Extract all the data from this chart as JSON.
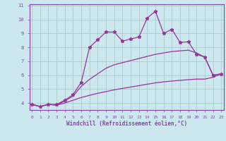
{
  "xlabel": "Windchill (Refroidissement éolien,°C)",
  "background_color": "#cce8ee",
  "line_color": "#993399",
  "grid_color": "#aacccc",
  "x_main": [
    0,
    1,
    2,
    3,
    4,
    5,
    6,
    7,
    8,
    9,
    10,
    11,
    12,
    13,
    14,
    15,
    16,
    17,
    18,
    19,
    20,
    21,
    22,
    23
  ],
  "y_main": [
    3.9,
    3.75,
    3.9,
    3.9,
    4.2,
    4.6,
    5.5,
    8.0,
    8.55,
    9.1,
    9.1,
    8.45,
    8.6,
    8.75,
    10.1,
    10.6,
    9.0,
    9.3,
    8.35,
    8.4,
    7.5,
    7.3,
    6.0,
    6.1
  ],
  "y_upper": [
    3.9,
    3.75,
    3.9,
    3.85,
    4.15,
    4.5,
    5.2,
    5.7,
    6.1,
    6.5,
    6.75,
    6.9,
    7.05,
    7.2,
    7.35,
    7.5,
    7.6,
    7.7,
    7.75,
    7.8,
    7.6,
    7.3,
    6.0,
    6.1
  ],
  "y_lower": [
    3.9,
    3.75,
    3.9,
    3.85,
    4.0,
    4.2,
    4.4,
    4.55,
    4.7,
    4.82,
    4.95,
    5.05,
    5.15,
    5.25,
    5.35,
    5.45,
    5.52,
    5.58,
    5.63,
    5.68,
    5.72,
    5.72,
    5.85,
    6.1
  ],
  "ylim": [
    3.5,
    11.1
  ],
  "xlim": [
    -0.3,
    23.3
  ],
  "yticks": [
    4,
    5,
    6,
    7,
    8,
    9,
    10,
    11
  ],
  "xticks": [
    0,
    1,
    2,
    3,
    4,
    5,
    6,
    7,
    8,
    9,
    10,
    11,
    12,
    13,
    14,
    15,
    16,
    17,
    18,
    19,
    20,
    21,
    22,
    23
  ],
  "border_color": "#8844aa"
}
